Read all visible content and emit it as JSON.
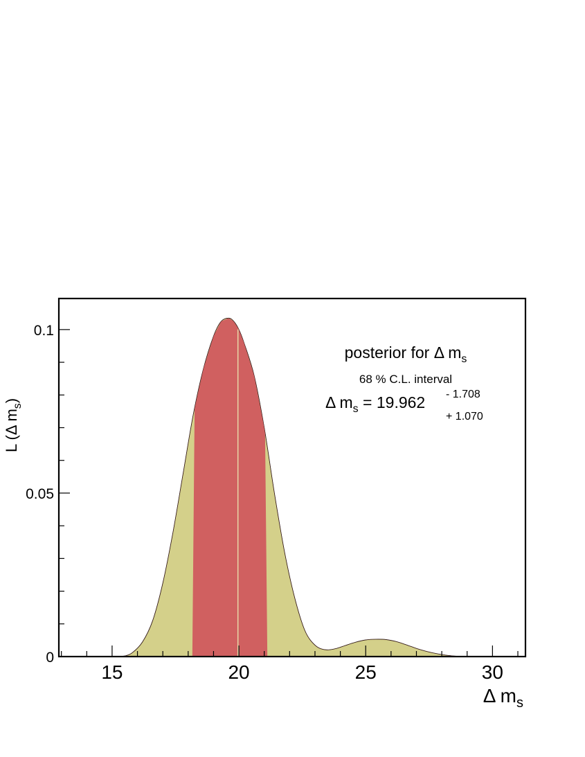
{
  "chart_data": {
    "type": "area",
    "xlim": [
      12.9,
      31.3
    ],
    "ylim": [
      0,
      0.1095
    ],
    "x_major_ticks": [
      15,
      20,
      25,
      30
    ],
    "x_tick_labels": [
      "15",
      "20",
      "25",
      "30"
    ],
    "y_major_ticks": [
      0,
      0.05,
      0.1
    ],
    "y_tick_labels": [
      "0",
      "0.05",
      "0.1"
    ],
    "xlabel": {
      "symbol": "Δ m",
      "sub": "s"
    },
    "ylabel": {
      "prefix": "L (",
      "symbol": "Δ m",
      "sub": "s",
      "suffix": ")"
    },
    "grid": false,
    "legend": "none",
    "colors": {
      "posterior_fill": "#d4d08a",
      "interval_fill": "#d06060",
      "outline": "#000000",
      "peak_marker": "#e8d8a8"
    },
    "series": [
      {
        "x": [
          15.2,
          15.5,
          15.8,
          16.2,
          16.6,
          17.0,
          17.4,
          17.8,
          18.2,
          18.6,
          19.0,
          19.3,
          19.6,
          19.8,
          20.0,
          20.2,
          20.6,
          21.0,
          21.4,
          21.8,
          22.2,
          22.6,
          23.0,
          23.4,
          23.8,
          24.2,
          24.6,
          25.0,
          25.4,
          25.8,
          26.2,
          26.6,
          27.0,
          27.4,
          27.8,
          28.2,
          28.6
        ],
        "y": [
          0.0,
          0.0002,
          0.0012,
          0.0045,
          0.011,
          0.0225,
          0.038,
          0.056,
          0.074,
          0.088,
          0.098,
          0.1025,
          0.1035,
          0.1025,
          0.1,
          0.096,
          0.086,
          0.07,
          0.05,
          0.032,
          0.018,
          0.008,
          0.0035,
          0.0021,
          0.0024,
          0.0034,
          0.0044,
          0.0051,
          0.0053,
          0.0052,
          0.0046,
          0.0036,
          0.0025,
          0.0016,
          0.0009,
          0.0004,
          0.0001
        ]
      }
    ],
    "interval": {
      "low": 18.254,
      "high": 21.032,
      "peak": 19.962
    },
    "annotations": {
      "title": {
        "pre": "posterior for  ",
        "symbol": "Δ m",
        "sub": "s"
      },
      "cl_text": "68 % C.L. interval",
      "result": {
        "symbol": "Δ m",
        "sub": "s",
        "equals": " = ",
        "value": "19.962",
        "upper": "- 1.708",
        "lower": "+ 1.070"
      }
    }
  }
}
